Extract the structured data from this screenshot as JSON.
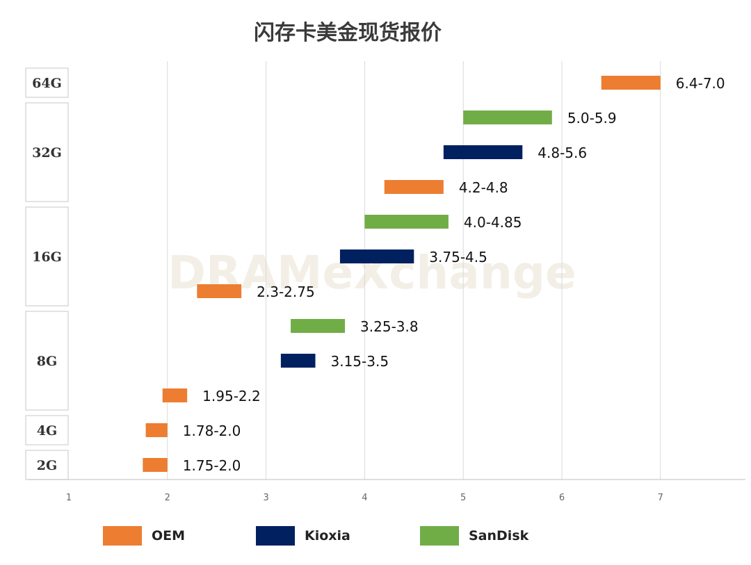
{
  "chart_data": {
    "type": "bar",
    "title": "闪存卡美金现货报价",
    "xlim": [
      1,
      7.8
    ],
    "x_ticks": [
      "1",
      "2",
      "3",
      "4",
      "5",
      "6",
      "7"
    ],
    "x_tick_values": [
      1,
      2,
      3,
      4,
      5,
      6,
      7
    ],
    "grid": "vertical",
    "legend_position": "bottom",
    "groups": [
      {
        "label": "64G",
        "rows": 1
      },
      {
        "label": "32G",
        "rows": 3
      },
      {
        "label": "16G",
        "rows": 3
      },
      {
        "label": "8G",
        "rows": 3
      },
      {
        "label": "4G",
        "rows": 1
      },
      {
        "label": "2G",
        "rows": 1
      }
    ],
    "series": [
      {
        "name": "OEM",
        "color": "#ED7D31"
      },
      {
        "name": "Kioxia",
        "color": "#002060"
      },
      {
        "name": "SanDisk",
        "color": "#70AD47"
      }
    ],
    "ranges": [
      {
        "group": "64G",
        "series": "OEM",
        "low": 6.4,
        "high": 7.0,
        "label": "6.4-7.0"
      },
      {
        "group": "32G",
        "series": "SanDisk",
        "low": 5.0,
        "high": 5.9,
        "label": "5.0-5.9"
      },
      {
        "group": "32G",
        "series": "Kioxia",
        "low": 4.8,
        "high": 5.6,
        "label": "4.8-5.6"
      },
      {
        "group": "32G",
        "series": "OEM",
        "low": 4.2,
        "high": 4.8,
        "label": "4.2-4.8"
      },
      {
        "group": "16G",
        "series": "SanDisk",
        "low": 4.0,
        "high": 4.85,
        "label": "4.0-4.85"
      },
      {
        "group": "16G",
        "series": "Kioxia",
        "low": 3.75,
        "high": 4.5,
        "label": "3.75-4.5"
      },
      {
        "group": "16G",
        "series": "OEM",
        "low": 2.3,
        "high": 2.75,
        "label": "2.3-2.75"
      },
      {
        "group": "8G",
        "series": "SanDisk",
        "low": 3.25,
        "high": 3.8,
        "label": "3.25-3.8"
      },
      {
        "group": "8G",
        "series": "Kioxia",
        "low": 3.15,
        "high": 3.5,
        "label": "3.15-3.5"
      },
      {
        "group": "8G",
        "series": "OEM",
        "low": 1.95,
        "high": 2.2,
        "label": "1.95-2.2"
      },
      {
        "group": "4G",
        "series": "OEM",
        "low": 1.78,
        "high": 2.0,
        "label": "1.78-2.0"
      },
      {
        "group": "2G",
        "series": "OEM",
        "low": 1.75,
        "high": 2.0,
        "label": "1.75-2.0"
      }
    ]
  },
  "watermark": "DRAMeXchange"
}
